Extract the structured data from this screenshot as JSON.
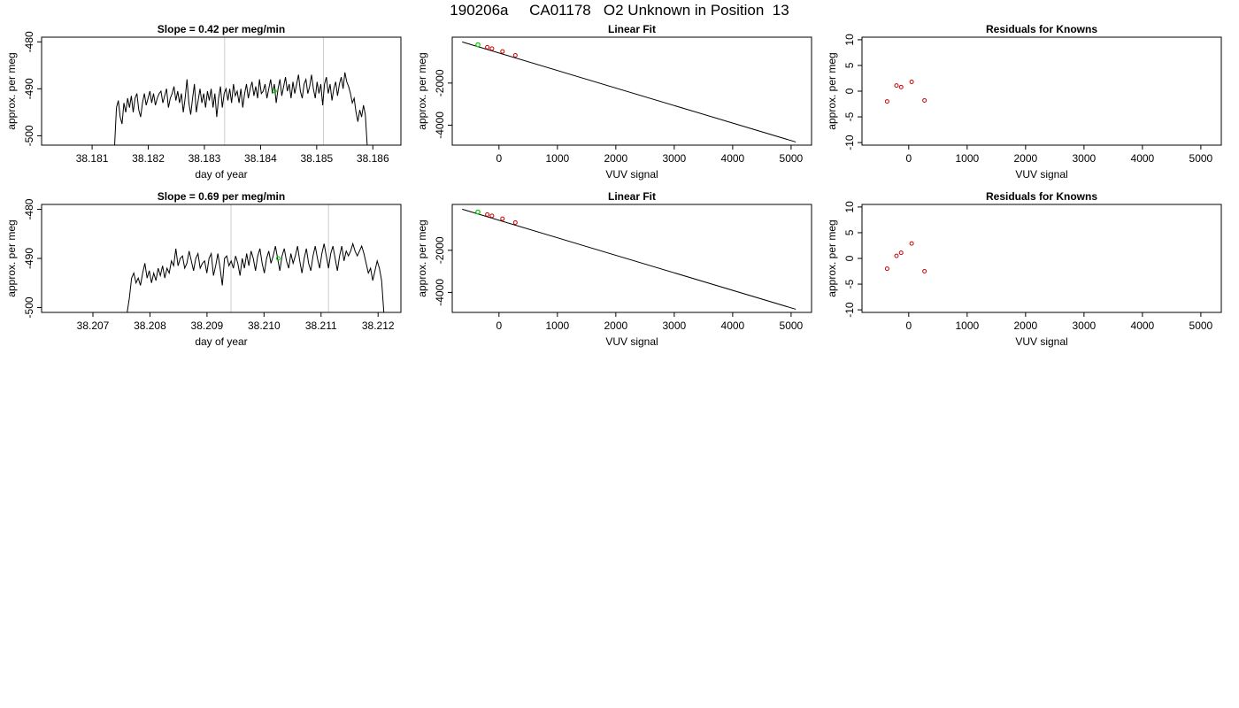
{
  "page_title": "190206a     CA01178   O2 Unknown in Position  13",
  "chart_data": [
    {
      "type": "line",
      "title": "Slope =  0.42  per meg/min",
      "xlabel": "day of year",
      "ylabel": "approx. per meg",
      "xlim": [
        38.1801,
        38.1865
      ],
      "ylim": [
        -502,
        -479
      ],
      "xticks": [
        38.181,
        38.182,
        38.183,
        38.184,
        38.185,
        38.186
      ],
      "xtick_labels": [
        "38.181",
        "38.182",
        "38.183",
        "38.184",
        "38.185",
        "38.186"
      ],
      "yticks": [
        -480,
        -490,
        -500
      ],
      "ytick_labels": [
        "-480",
        "-490",
        "-500"
      ],
      "vlines": [
        38.18336,
        38.18512
      ],
      "x_start": 38.1814,
      "x_end": 38.1859,
      "y": [
        -502,
        -494,
        -492.5,
        -496,
        -497.5,
        -493,
        -495,
        -492,
        -494,
        -491.5,
        -495,
        -492,
        -491,
        -494.5,
        -496,
        -493,
        -491,
        -493.5,
        -492,
        -490.5,
        -493,
        -491,
        -493.5,
        -492,
        -491,
        -490.5,
        -493,
        -491.5,
        -490,
        -494,
        -492,
        -491,
        -489.5,
        -492.5,
        -490.5,
        -493,
        -491,
        -495,
        -492,
        -488,
        -493,
        -495.5,
        -492,
        -489,
        -495,
        -492.5,
        -490,
        -493,
        -491,
        -494,
        -490.5,
        -492.5,
        -490,
        -494,
        -491,
        -496,
        -492,
        -489.5,
        -494,
        -491,
        -490,
        -492.5,
        -490,
        -493,
        -489,
        -491.5,
        -490.5,
        -493,
        -490,
        -494,
        -491,
        -489,
        -492,
        -490,
        -488.5,
        -491.5,
        -489.5,
        -492,
        -488,
        -491,
        -490.5,
        -489,
        -492,
        -490,
        -488,
        -491,
        -489,
        -493,
        -490,
        -488,
        -491.5,
        -489.5,
        -487.5,
        -490.5,
        -489,
        -492,
        -488.5,
        -491,
        -489,
        -487,
        -490.5,
        -492,
        -489,
        -488,
        -491,
        -489.5,
        -487,
        -490,
        -492,
        -488.5,
        -491,
        -489,
        -493.5,
        -489,
        -487.5,
        -491,
        -489,
        -492.5,
        -490,
        -488.5,
        -491.5,
        -489,
        -487.5,
        -490,
        -486.5,
        -488.5,
        -489.5,
        -491,
        -493,
        -492,
        -495,
        -497,
        -494.5,
        -496,
        -493.5,
        -495.5,
        -502
      ],
      "highlight": {
        "x": 38.18425,
        "y": -490.5
      }
    },
    {
      "type": "scatter",
      "title": "Linear Fit",
      "xlabel": "VUV signal",
      "ylabel": "approx. per meg",
      "xlim": [
        -800,
        5350
      ],
      "ylim": [
        -4950,
        180
      ],
      "xticks": [
        0,
        1000,
        2000,
        3000,
        4000,
        5000
      ],
      "xtick_labels": [
        "0",
        "1000",
        "2000",
        "3000",
        "4000",
        "5000"
      ],
      "yticks": [
        -2000,
        -4000
      ],
      "ytick_labels": [
        "-2000",
        "-4000"
      ],
      "fit_line": {
        "x": [
          -630,
          5080
        ],
        "y": [
          -47,
          -4800
        ]
      },
      "points_known": {
        "x": [
          -200,
          -120,
          60,
          280
        ],
        "y": [
          -300,
          -360,
          -500,
          -680
        ]
      },
      "point_unknown": {
        "x": -360,
        "y": -180
      }
    },
    {
      "type": "scatter",
      "title": "Residuals for Knowns",
      "xlabel": "VUV signal",
      "ylabel": "approx. per meg",
      "xlim": [
        -800,
        5350
      ],
      "ylim": [
        -10.5,
        10.5
      ],
      "xticks": [
        0,
        1000,
        2000,
        3000,
        4000,
        5000
      ],
      "xtick_labels": [
        "0",
        "1000",
        "2000",
        "3000",
        "4000",
        "5000"
      ],
      "yticks": [
        10,
        5,
        0,
        -5,
        -10
      ],
      "ytick_labels": [
        "10",
        "5",
        "0",
        "-5",
        "-10"
      ],
      "points": {
        "x": [
          -370,
          -210,
          -130,
          50,
          270
        ],
        "y": [
          -2,
          1.1,
          0.8,
          1.8,
          -1.8
        ]
      }
    },
    {
      "type": "line",
      "title": "Slope =  0.69  per meg/min",
      "xlabel": "day of year",
      "ylabel": "approx. per meg",
      "xlim": [
        38.2061,
        38.2124
      ],
      "ylim": [
        -501,
        -479
      ],
      "xticks": [
        38.207,
        38.208,
        38.209,
        38.21,
        38.211,
        38.212
      ],
      "xtick_labels": [
        "38.207",
        "38.208",
        "38.209",
        "38.210",
        "38.211",
        "38.212"
      ],
      "yticks": [
        -480,
        -490,
        -500
      ],
      "ytick_labels": [
        "-480",
        "-490",
        "-500"
      ],
      "vlines": [
        38.20942,
        38.21113
      ],
      "x_start": 38.2076,
      "x_end": 38.2121,
      "y": [
        -501,
        -498,
        -494,
        -493,
        -495,
        -494,
        -495.5,
        -493,
        -491,
        -494,
        -492.5,
        -495,
        -493,
        -494.5,
        -492,
        -493.5,
        -491.5,
        -494,
        -492,
        -493,
        -490.5,
        -491.5,
        -488,
        -491.5,
        -490,
        -489.5,
        -492,
        -491,
        -488.5,
        -490.5,
        -492.5,
        -490,
        -489,
        -492,
        -491,
        -490.5,
        -493,
        -490,
        -489,
        -493.5,
        -491.5,
        -489,
        -492,
        -495.5,
        -490,
        -489.5,
        -491.5,
        -490.5,
        -492,
        -489.5,
        -491,
        -493.5,
        -490,
        -492,
        -489,
        -491.5,
        -488.5,
        -490,
        -492.5,
        -489.5,
        -488,
        -491,
        -493,
        -490,
        -488.5,
        -491,
        -489.5,
        -487.5,
        -490,
        -492.5,
        -489.5,
        -488,
        -490.5,
        -492,
        -489,
        -491,
        -489.5,
        -487.5,
        -490.5,
        -493,
        -490,
        -488,
        -491,
        -492.5,
        -489.5,
        -487.5,
        -490,
        -492,
        -489,
        -487,
        -489.5,
        -492,
        -489,
        -487.5,
        -490,
        -492.5,
        -489.5,
        -487.5,
        -490.5,
        -488.5,
        -489.5,
        -488.5,
        -487,
        -488.5,
        -489.5,
        -488.5,
        -487.5,
        -489,
        -491,
        -493,
        -492,
        -494.5,
        -492.5,
        -490.5,
        -492,
        -494.5,
        -501
      ],
      "highlight": {
        "x": 38.21025,
        "y": -490
      }
    },
    {
      "type": "scatter",
      "title": "Linear Fit",
      "xlabel": "VUV signal",
      "ylabel": "approx. per meg",
      "xlim": [
        -800,
        5350
      ],
      "ylim": [
        -4950,
        180
      ],
      "xticks": [
        0,
        1000,
        2000,
        3000,
        4000,
        5000
      ],
      "xtick_labels": [
        "0",
        "1000",
        "2000",
        "3000",
        "4000",
        "5000"
      ],
      "yticks": [
        -2000,
        -4000
      ],
      "ytick_labels": [
        "-2000",
        "-4000"
      ],
      "fit_line": {
        "x": [
          -630,
          5080
        ],
        "y": [
          -47,
          -4800
        ]
      },
      "points_known": {
        "x": [
          -200,
          -120,
          60,
          280
        ],
        "y": [
          -300,
          -360,
          -500,
          -680
        ]
      },
      "point_unknown": {
        "x": -360,
        "y": -180
      }
    },
    {
      "type": "scatter",
      "title": "Residuals for Knowns",
      "xlabel": "VUV signal",
      "ylabel": "approx. per meg",
      "xlim": [
        -800,
        5350
      ],
      "ylim": [
        -10.5,
        10.5
      ],
      "xticks": [
        0,
        1000,
        2000,
        3000,
        4000,
        5000
      ],
      "xtick_labels": [
        "0",
        "1000",
        "2000",
        "3000",
        "4000",
        "5000"
      ],
      "yticks": [
        10,
        5,
        0,
        -5,
        -10
      ],
      "ytick_labels": [
        "10",
        "5",
        "0",
        "-5",
        "-10"
      ],
      "points": {
        "x": [
          -370,
          -210,
          -130,
          50,
          270
        ],
        "y": [
          -2,
          0.5,
          1.1,
          2.9,
          -2.5
        ]
      }
    }
  ],
  "colors": {
    "line": "#000000",
    "vline": "#cccccc",
    "known_point": "#cc0000",
    "unknown_point": "#00cc00"
  }
}
